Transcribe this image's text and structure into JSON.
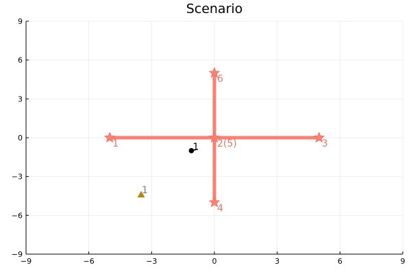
{
  "chart_data": {
    "type": "scatter",
    "title": "Scenario",
    "xlabel": "",
    "ylabel": "",
    "xlim": [
      -9,
      9
    ],
    "ylim": [
      -9,
      9
    ],
    "xticks": [
      -9,
      -6,
      -3,
      0,
      3,
      6,
      9
    ],
    "yticks": [
      -9,
      -6,
      -3,
      0,
      3,
      6,
      9
    ],
    "xtick_labels": [
      "−9",
      "−6",
      "−3",
      "0",
      "3",
      "6",
      "9"
    ],
    "ytick_labels": [
      "−9",
      "−6",
      "−3",
      "0",
      "3",
      "6",
      "9"
    ],
    "grid": true,
    "legend": "none",
    "colors": {
      "network": "#fa8072",
      "network_label": "#e07868",
      "agent": "#000000",
      "target": "#b8860b",
      "target_label": "#808080"
    },
    "network_edges": [
      {
        "from": [
          -5,
          0
        ],
        "to": [
          5,
          0
        ]
      },
      {
        "from": [
          0,
          5
        ],
        "to": [
          0,
          -5
        ]
      }
    ],
    "network_nodes": [
      {
        "label": "1",
        "x": -5,
        "y": 0
      },
      {
        "label": "2(5)",
        "x": 0,
        "y": 0
      },
      {
        "label": "3",
        "x": 5,
        "y": 0
      },
      {
        "label": "4",
        "x": 0,
        "y": -5
      },
      {
        "label": "6",
        "x": 0,
        "y": 5
      }
    ],
    "agents": [
      {
        "label": "1",
        "x": -1.1,
        "y": -1.0,
        "heading_to": [
          -0.8,
          -0.9
        ]
      }
    ],
    "targets": [
      {
        "label": "1",
        "x": -3.5,
        "y": -4.4
      }
    ]
  }
}
